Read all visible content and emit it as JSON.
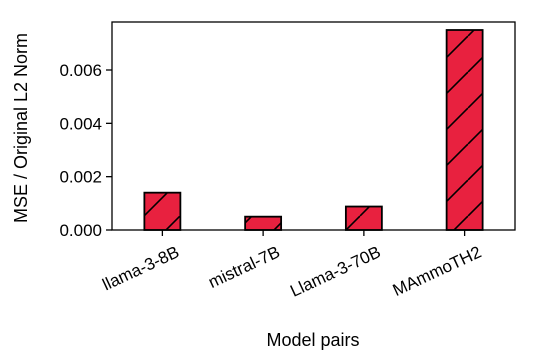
{
  "chart_data": {
    "type": "bar",
    "title": "",
    "xlabel": "Model pairs",
    "ylabel": "MSE / Original L2 Norm",
    "categories": [
      "llama-3-8B",
      "mistral-7B",
      "Llama-3-70B",
      "MAmmoTH2"
    ],
    "values": [
      0.0014,
      0.0005,
      0.00088,
      0.0075
    ],
    "ylim": [
      0,
      0.0078
    ],
    "yticks": [
      0.0,
      0.002,
      0.004,
      0.006
    ],
    "ytick_labels": [
      "0.000",
      "0.002",
      "0.004",
      "0.006"
    ],
    "bar_color": "#e8213f",
    "hatch": "/",
    "grid": false,
    "legend": "none"
  }
}
